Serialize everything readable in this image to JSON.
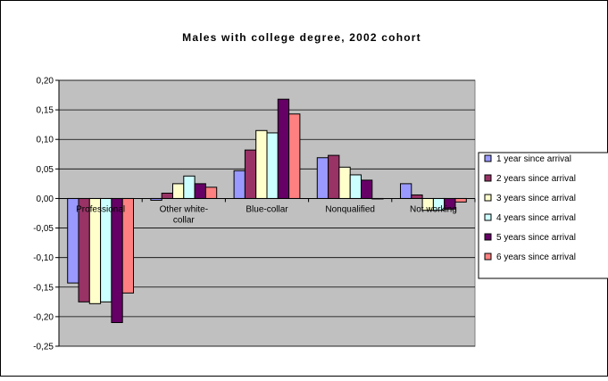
{
  "chart_data": {
    "type": "bar",
    "title": "Males with college degree, 2002 cohort",
    "xlabel": "",
    "ylabel": "",
    "ylim": [
      -0.25,
      0.2
    ],
    "yticks": [
      0.2,
      0.15,
      0.1,
      0.05,
      0.0,
      -0.05,
      -0.1,
      -0.15,
      -0.2,
      -0.25
    ],
    "ytick_labels": [
      "0,20",
      "0,15",
      "0,10",
      "0,05",
      "0,00",
      "-0,05",
      "-0,10",
      "-0,15",
      "-0,20",
      "-0,25"
    ],
    "grid": true,
    "legend_position": "right",
    "categories": [
      [
        "Professional"
      ],
      [
        "Other white-",
        "collar"
      ],
      [
        "Blue-collar"
      ],
      [
        "Nonqualified"
      ],
      [
        "Not working"
      ]
    ],
    "series": [
      {
        "name": "1 year since arrival",
        "color": "#9999ff",
        "values": [
          -0.143,
          -0.003,
          0.047,
          0.069,
          0.025
        ]
      },
      {
        "name": "2 years since arrival",
        "color": "#993366",
        "values": [
          -0.175,
          0.009,
          0.082,
          0.073,
          0.006
        ]
      },
      {
        "name": "3 years since arrival",
        "color": "#ffffcc",
        "values": [
          -0.178,
          0.025,
          0.115,
          0.053,
          -0.02
        ]
      },
      {
        "name": "4 years since arrival",
        "color": "#ccffff",
        "values": [
          -0.175,
          0.038,
          0.111,
          0.04,
          -0.02
        ]
      },
      {
        "name": "5 years since arrival",
        "color": "#660066",
        "values": [
          -0.21,
          0.025,
          0.168,
          0.031,
          -0.018
        ]
      },
      {
        "name": "6 years since arrival",
        "color": "#ff8080",
        "values": [
          -0.16,
          0.019,
          0.143,
          0.0,
          -0.006
        ]
      }
    ],
    "plot_background": "#c0c0c0"
  }
}
